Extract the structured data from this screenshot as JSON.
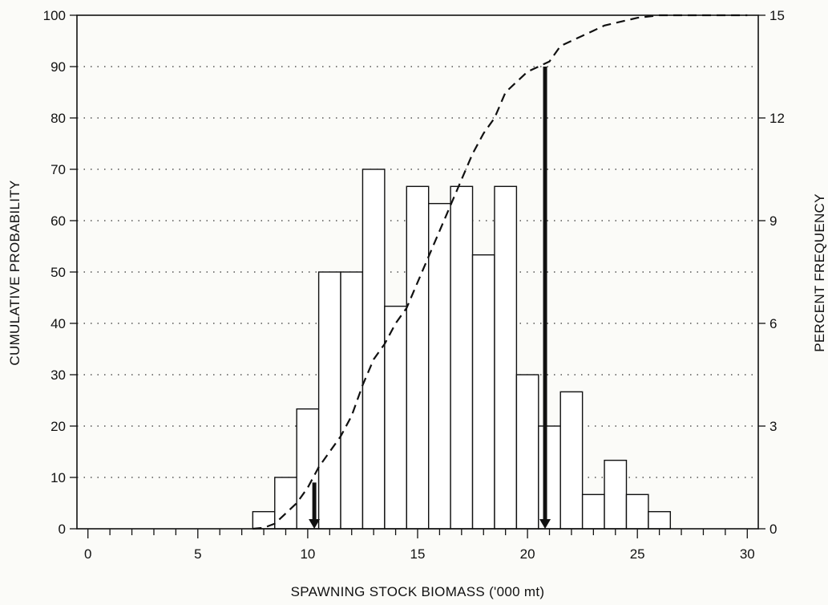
{
  "chart_data": {
    "type": "bar",
    "title": "",
    "xlabel": "SPAWNING STOCK BIOMASS ('000 mt)",
    "ylabel_left": "CUMULATIVE PROBABILITY",
    "ylabel_right": "PERCENT FREQUENCY",
    "xlim": [
      -0.5,
      30.5
    ],
    "ylim_left": [
      0,
      100
    ],
    "ylim_right": [
      0,
      15
    ],
    "x_ticks": [
      0,
      5,
      10,
      15,
      20,
      25,
      30
    ],
    "y_ticks_left": [
      0,
      10,
      20,
      30,
      40,
      50,
      60,
      70,
      80,
      90,
      100
    ],
    "y_ticks_right": [
      0,
      3,
      6,
      9,
      12,
      15
    ],
    "grid": "horizontal dotted at left-axis ticks",
    "histogram": {
      "name": "Percent frequency",
      "axis": "right",
      "bin_centers": [
        8,
        9,
        10,
        11,
        12,
        13,
        14,
        15,
        16,
        17,
        18,
        19,
        20,
        21,
        22,
        23,
        24,
        25,
        26
      ],
      "values": [
        0.5,
        1.5,
        3.5,
        7.5,
        7.5,
        10.5,
        6.5,
        10.0,
        9.5,
        10.0,
        8.0,
        10.0,
        4.5,
        3.0,
        4.0,
        1.0,
        2.0,
        1.0,
        0.5
      ]
    },
    "cumulative": {
      "name": "Cumulative probability",
      "axis": "left",
      "style": "dashed",
      "x": [
        7.5,
        8.0,
        8.5,
        9.0,
        9.5,
        10.0,
        10.5,
        11.0,
        11.5,
        12.0,
        12.5,
        13.0,
        13.5,
        14.0,
        14.5,
        15.0,
        15.5,
        16.0,
        16.5,
        17.0,
        17.5,
        18.0,
        18.5,
        19.0,
        19.5,
        20.0,
        20.5,
        21.0,
        21.5,
        22.0,
        22.5,
        23.0,
        23.5,
        24.0,
        24.5,
        25.0,
        26.0,
        30.0
      ],
      "y": [
        0,
        0.2,
        1,
        3,
        5,
        8,
        12,
        15,
        18,
        22,
        28,
        33,
        36,
        40,
        43,
        48,
        53,
        58,
        63,
        68,
        73,
        77,
        80,
        85,
        87,
        89,
        90,
        91,
        94,
        95,
        96,
        97,
        98,
        98.5,
        99,
        99.5,
        100,
        100
      ]
    },
    "markers": [
      {
        "x": 10.3,
        "from": 9,
        "to": 0,
        "axis": "left",
        "type": "arrow-down"
      },
      {
        "x": 20.8,
        "from": 90,
        "to": 0,
        "axis": "left",
        "type": "arrow-down"
      }
    ]
  }
}
